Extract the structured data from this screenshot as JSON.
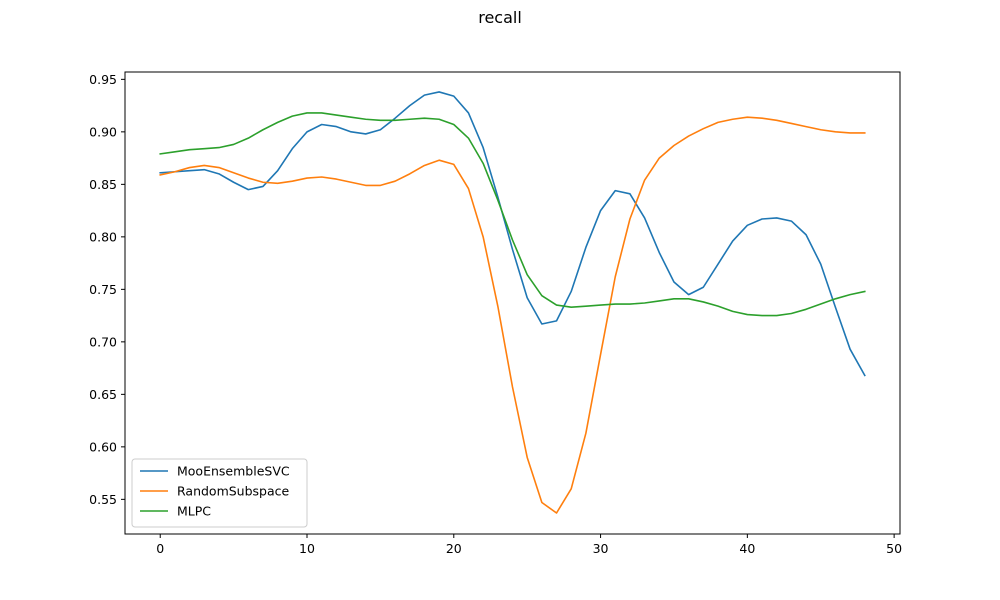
{
  "chart_data": {
    "type": "line",
    "title": "recall",
    "xlabel": "",
    "ylabel": "",
    "xlim": [
      -2.4,
      50.4
    ],
    "ylim": [
      0.517,
      0.957
    ],
    "x_ticks": [
      0,
      10,
      20,
      30,
      40,
      50
    ],
    "y_ticks": [
      0.55,
      0.6,
      0.65,
      0.7,
      0.75,
      0.8,
      0.85,
      0.9,
      0.95
    ],
    "grid": false,
    "legend_position": "lower-left",
    "x": [
      0,
      1,
      2,
      3,
      4,
      5,
      6,
      7,
      8,
      9,
      10,
      11,
      12,
      13,
      14,
      15,
      16,
      17,
      18,
      19,
      20,
      21,
      22,
      23,
      24,
      25,
      26,
      27,
      28,
      29,
      30,
      31,
      32,
      33,
      34,
      35,
      36,
      37,
      38,
      39,
      40,
      41,
      42,
      43,
      44,
      45,
      46,
      47,
      48
    ],
    "series": [
      {
        "name": "MooEnsembleSVC",
        "color": "#1f77b4",
        "values": [
          0.861,
          0.862,
          0.863,
          0.864,
          0.86,
          0.852,
          0.845,
          0.848,
          0.863,
          0.884,
          0.9,
          0.907,
          0.905,
          0.9,
          0.898,
          0.902,
          0.913,
          0.925,
          0.935,
          0.938,
          0.934,
          0.918,
          0.885,
          0.838,
          0.788,
          0.742,
          0.717,
          0.72,
          0.748,
          0.79,
          0.825,
          0.844,
          0.841,
          0.818,
          0.785,
          0.757,
          0.745,
          0.752,
          0.774,
          0.796,
          0.811,
          0.817,
          0.818,
          0.815,
          0.802,
          0.774,
          0.733,
          0.693,
          0.668
        ]
      },
      {
        "name": "RandomSubspace",
        "color": "#ff7f0e",
        "values": [
          0.859,
          0.862,
          0.866,
          0.868,
          0.866,
          0.861,
          0.856,
          0.852,
          0.851,
          0.853,
          0.856,
          0.857,
          0.855,
          0.852,
          0.849,
          0.849,
          0.853,
          0.86,
          0.868,
          0.873,
          0.869,
          0.846,
          0.8,
          0.734,
          0.657,
          0.59,
          0.547,
          0.537,
          0.56,
          0.613,
          0.688,
          0.762,
          0.817,
          0.854,
          0.875,
          0.887,
          0.896,
          0.903,
          0.909,
          0.912,
          0.914,
          0.913,
          0.911,
          0.908,
          0.905,
          0.902,
          0.9,
          0.899,
          0.899
        ]
      },
      {
        "name": "MLPC",
        "color": "#2ca02c",
        "values": [
          0.879,
          0.881,
          0.883,
          0.884,
          0.885,
          0.888,
          0.894,
          0.902,
          0.909,
          0.915,
          0.918,
          0.918,
          0.916,
          0.914,
          0.912,
          0.911,
          0.911,
          0.912,
          0.913,
          0.912,
          0.907,
          0.894,
          0.87,
          0.835,
          0.797,
          0.764,
          0.744,
          0.735,
          0.733,
          0.734,
          0.735,
          0.736,
          0.736,
          0.737,
          0.739,
          0.741,
          0.741,
          0.738,
          0.734,
          0.729,
          0.726,
          0.725,
          0.725,
          0.727,
          0.731,
          0.736,
          0.741,
          0.745,
          0.748
        ]
      }
    ]
  }
}
